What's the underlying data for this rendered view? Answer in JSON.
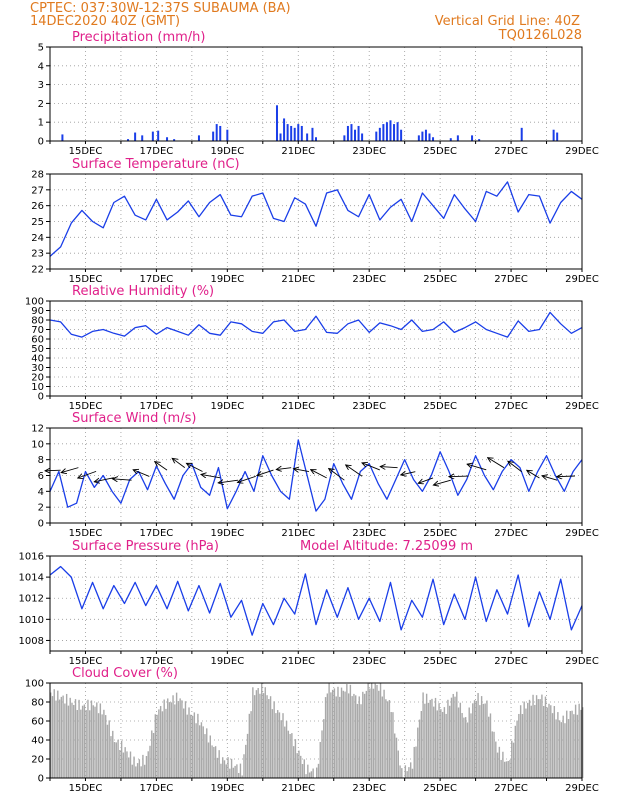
{
  "header": {
    "line1_left": "CPTEC:   037:30W-12:37S   SUBAUMA (BA)",
    "line2_left": "14DEC2020 40Z (GMT)",
    "line1_right": "Vertical Grid Line: 40Z",
    "line2_right": "TQ0126L028"
  },
  "x_ticks": [
    "15DEC",
    "17DEC",
    "19DEC",
    "21DEC",
    "23DEC",
    "25DEC",
    "27DEC",
    "29DEC"
  ],
  "x_tick_days": [
    1,
    3,
    5,
    7,
    9,
    11,
    13,
    15
  ],
  "x_range_days": [
    0,
    15
  ],
  "colors": {
    "line": "#1a3ee8",
    "bar": "#1a3ee8",
    "cloud": "#a9a9a9",
    "arrow": "#000000",
    "header": "#e07a1f",
    "title": "#e0208a"
  },
  "chart_data": [
    {
      "type": "bar",
      "title": "Precipitation (mm/h)",
      "ylim": [
        0,
        5
      ],
      "y_ticks": [
        "0",
        "1",
        "2",
        "3",
        "4",
        "5"
      ],
      "series": [
        {
          "x": [
            0.35,
            2.2,
            2.4,
            2.6,
            2.9,
            3.05,
            3.3,
            3.5,
            4.2,
            4.6,
            4.7,
            4.8,
            5.0,
            6.4,
            6.5,
            6.6,
            6.7,
            6.8,
            6.9,
            7.0,
            7.1,
            7.25,
            7.4,
            7.5,
            8.3,
            8.4,
            8.5,
            8.6,
            8.7,
            8.8,
            9.2,
            9.3,
            9.4,
            9.5,
            9.6,
            9.7,
            9.8,
            9.9,
            10.4,
            10.5,
            10.6,
            10.7,
            10.8,
            11.3,
            11.5,
            11.9,
            12.1,
            13.3,
            14.2,
            14.3
          ],
          "values": [
            0.35,
            0.1,
            0.45,
            0.3,
            0.5,
            0.55,
            0.2,
            0.1,
            0.3,
            0.5,
            0.9,
            0.8,
            0.6,
            1.9,
            0.4,
            1.2,
            0.9,
            0.8,
            0.7,
            0.9,
            0.8,
            0.4,
            0.7,
            0.2,
            0.3,
            0.8,
            0.9,
            0.6,
            0.8,
            0.4,
            0.5,
            0.7,
            0.9,
            1.0,
            1.1,
            0.9,
            1.0,
            0.6,
            0.3,
            0.5,
            0.6,
            0.4,
            0.2,
            0.15,
            0.3,
            0.3,
            0.1,
            0.7,
            0.6,
            0.45
          ]
        }
      ]
    },
    {
      "type": "line",
      "title": "Surface Temperature (nC)",
      "ylim": [
        22,
        28
      ],
      "y_ticks": [
        "22",
        "23",
        "24",
        "25",
        "26",
        "27",
        "28"
      ],
      "series": [
        {
          "x": [
            0,
            0.3,
            0.6,
            0.9,
            1.2,
            1.5,
            1.8,
            2.1,
            2.4,
            2.7,
            3.0,
            3.3,
            3.6,
            3.9,
            4.2,
            4.5,
            4.8,
            5.1,
            5.4,
            5.7,
            6.0,
            6.3,
            6.6,
            6.9,
            7.2,
            7.5,
            7.8,
            8.1,
            8.4,
            8.7,
            9.0,
            9.3,
            9.6,
            9.9,
            10.2,
            10.5,
            10.8,
            11.1,
            11.4,
            11.7,
            12.0,
            12.3,
            12.6,
            12.9,
            13.2,
            13.5,
            13.8,
            14.1,
            14.4,
            14.7,
            15.0
          ],
          "values": [
            22.8,
            23.4,
            24.9,
            25.7,
            25.0,
            24.6,
            26.2,
            26.6,
            25.4,
            25.1,
            26.4,
            25.1,
            25.6,
            26.3,
            25.3,
            26.2,
            26.7,
            25.4,
            25.3,
            26.6,
            26.8,
            25.2,
            25.0,
            26.5,
            26.1,
            24.7,
            26.8,
            27.0,
            25.7,
            25.3,
            26.7,
            25.1,
            25.9,
            26.4,
            25.0,
            26.8,
            26.0,
            25.2,
            26.7,
            25.8,
            25.0,
            26.9,
            26.6,
            27.5,
            25.6,
            26.7,
            26.6,
            24.9,
            26.2,
            26.9,
            26.4
          ]
        }
      ]
    },
    {
      "type": "line",
      "title": "Relative Humidity (%)",
      "ylim": [
        0,
        100
      ],
      "y_ticks": [
        "0",
        "10",
        "20",
        "30",
        "40",
        "50",
        "60",
        "70",
        "80",
        "90",
        "100"
      ],
      "series": [
        {
          "x": [
            0,
            0.3,
            0.6,
            0.9,
            1.2,
            1.5,
            1.8,
            2.1,
            2.4,
            2.7,
            3.0,
            3.3,
            3.6,
            3.9,
            4.2,
            4.5,
            4.8,
            5.1,
            5.4,
            5.7,
            6.0,
            6.3,
            6.6,
            6.9,
            7.2,
            7.5,
            7.8,
            8.1,
            8.4,
            8.7,
            9.0,
            9.3,
            9.6,
            9.9,
            10.2,
            10.5,
            10.8,
            11.1,
            11.4,
            11.7,
            12.0,
            12.3,
            12.6,
            12.9,
            13.2,
            13.5,
            13.8,
            14.1,
            14.4,
            14.7,
            15.0
          ],
          "values": [
            80,
            78,
            65,
            62,
            68,
            70,
            66,
            63,
            72,
            74,
            65,
            72,
            68,
            64,
            75,
            66,
            64,
            78,
            76,
            68,
            66,
            78,
            80,
            68,
            70,
            84,
            67,
            66,
            76,
            80,
            67,
            77,
            74,
            70,
            80,
            68,
            70,
            78,
            67,
            72,
            78,
            70,
            66,
            62,
            79,
            68,
            70,
            88,
            76,
            66,
            72
          ]
        }
      ]
    },
    {
      "type": "line",
      "title": "Surface Wind (m/s)",
      "ylim": [
        0,
        12
      ],
      "y_ticks": [
        "0",
        "2",
        "4",
        "6",
        "8",
        "10",
        "12"
      ],
      "wind_arrows": "black vectors showing direction",
      "series": [
        {
          "x": [
            0,
            0.25,
            0.5,
            0.75,
            1.0,
            1.25,
            1.5,
            1.75,
            2.0,
            2.25,
            2.5,
            2.75,
            3.0,
            3.25,
            3.5,
            3.75,
            4.0,
            4.25,
            4.5,
            4.75,
            5.0,
            5.25,
            5.5,
            5.75,
            6.0,
            6.25,
            6.5,
            6.75,
            7.0,
            7.25,
            7.5,
            7.75,
            8.0,
            8.25,
            8.5,
            8.75,
            9.0,
            9.25,
            9.5,
            9.75,
            10.0,
            10.25,
            10.5,
            10.75,
            11.0,
            11.25,
            11.5,
            11.75,
            12.0,
            12.25,
            12.5,
            12.75,
            13.0,
            13.25,
            13.5,
            13.75,
            14.0,
            14.25,
            14.5,
            14.75,
            15.0
          ],
          "values": [
            4.0,
            6.5,
            2.0,
            2.5,
            6.5,
            4.5,
            6.0,
            4.0,
            2.5,
            5.5,
            6.5,
            4.2,
            7.2,
            5.0,
            3.0,
            6.0,
            7.5,
            4.5,
            3.5,
            7.0,
            1.8,
            4.0,
            6.5,
            4.0,
            8.5,
            6.0,
            4.0,
            3.0,
            10.5,
            6.0,
            1.5,
            3.0,
            7.5,
            5.0,
            3.0,
            6.5,
            7.5,
            5.0,
            3.0,
            5.5,
            8.0,
            5.5,
            4.0,
            6.0,
            9.0,
            6.5,
            3.5,
            5.5,
            8.5,
            6.0,
            4.2,
            6.5,
            8.0,
            7.0,
            4.0,
            6.5,
            8.5,
            6.0,
            4.0,
            6.5,
            8.0
          ]
        }
      ]
    },
    {
      "type": "line",
      "title": "Surface Pressure (hPa)",
      "annotation": "Model Altitude:  7.25099  m",
      "ylim": [
        1007,
        1016
      ],
      "y_ticks": [
        "1008",
        "1010",
        "1012",
        "1014",
        "1016"
      ],
      "series": [
        {
          "x": [
            0,
            0.3,
            0.6,
            0.9,
            1.2,
            1.5,
            1.8,
            2.1,
            2.4,
            2.7,
            3.0,
            3.3,
            3.6,
            3.9,
            4.2,
            4.5,
            4.8,
            5.1,
            5.4,
            5.7,
            6.0,
            6.3,
            6.6,
            6.9,
            7.2,
            7.5,
            7.8,
            8.1,
            8.4,
            8.7,
            9.0,
            9.3,
            9.6,
            9.9,
            10.2,
            10.5,
            10.8,
            11.1,
            11.4,
            11.7,
            12.0,
            12.3,
            12.6,
            12.9,
            13.2,
            13.5,
            13.8,
            14.1,
            14.4,
            14.7,
            15.0
          ],
          "values": [
            1014.2,
            1015.0,
            1014.0,
            1011.0,
            1013.5,
            1011.0,
            1013.2,
            1011.5,
            1013.5,
            1011.3,
            1013.2,
            1011.0,
            1013.6,
            1010.8,
            1013.2,
            1010.6,
            1013.4,
            1010.2,
            1011.8,
            1008.5,
            1011.5,
            1009.5,
            1012.0,
            1010.5,
            1014.3,
            1009.5,
            1012.8,
            1010.2,
            1013.0,
            1010.0,
            1012.0,
            1009.8,
            1013.5,
            1009.0,
            1011.8,
            1010.2,
            1013.8,
            1009.5,
            1012.4,
            1010.0,
            1014.0,
            1009.8,
            1012.8,
            1010.5,
            1014.2,
            1009.3,
            1012.6,
            1010.0,
            1013.8,
            1009.0,
            1011.3
          ]
        }
      ]
    },
    {
      "type": "area",
      "title": "Cloud Cover (%)",
      "ylim": [
        0,
        100
      ],
      "y_ticks": [
        "0",
        "20",
        "40",
        "60",
        "80",
        "100"
      ],
      "series": [
        {
          "x": [
            0,
            0.3,
            0.6,
            0.9,
            1.2,
            1.5,
            1.8,
            2.1,
            2.4,
            2.7,
            3.0,
            3.3,
            3.6,
            3.9,
            4.2,
            4.5,
            4.8,
            5.1,
            5.4,
            5.7,
            6.0,
            6.3,
            6.6,
            6.9,
            7.2,
            7.5,
            7.8,
            8.1,
            8.4,
            8.7,
            9.0,
            9.3,
            9.6,
            9.9,
            10.2,
            10.5,
            10.8,
            11.1,
            11.4,
            11.7,
            12.0,
            12.3,
            12.6,
            12.9,
            13.2,
            13.5,
            13.8,
            14.1,
            14.4,
            14.7,
            15.0
          ],
          "values": [
            90,
            85,
            80,
            75,
            78,
            70,
            40,
            30,
            15,
            20,
            70,
            80,
            85,
            70,
            60,
            40,
            20,
            15,
            8,
            90,
            95,
            75,
            60,
            35,
            10,
            5,
            95,
            90,
            95,
            80,
            100,
            95,
            75,
            5,
            15,
            85,
            80,
            70,
            90,
            60,
            85,
            78,
            30,
            15,
            70,
            80,
            85,
            75,
            60,
            70,
            75
          ]
        }
      ]
    }
  ]
}
